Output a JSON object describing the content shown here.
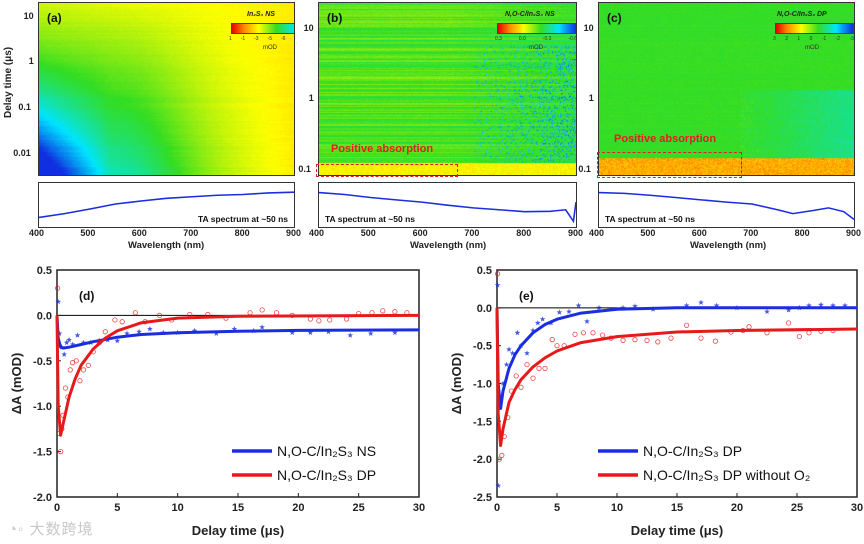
{
  "heatmaps": [
    {
      "id": "a",
      "panel_label": "(a)",
      "title": "In₂S₃ NS",
      "colorbar_ticks": [
        "1",
        "-1",
        "-3",
        "-5",
        "-6",
        "-8",
        "-10"
      ],
      "colorbar_unit": "mOD",
      "y_ticks": [
        "10",
        "1",
        "0.1",
        "0.01"
      ],
      "y_tick_values": [
        10,
        1,
        0.1,
        0.01
      ],
      "ylim": [
        0.0033,
        21
      ],
      "x_ticks": [
        "400",
        "500",
        "600",
        "700",
        "800",
        "900"
      ],
      "xlim": [
        400,
        900
      ],
      "xlabel": "Wavelength (nm)",
      "ylabel": "Delay time (μs)",
      "spectrum_caption": "TA spectrum at ~50 ns",
      "spectrum": {
        "x": [
          400,
          450,
          500,
          550,
          600,
          650,
          700,
          750,
          800,
          850,
          900
        ],
        "y": [
          0.2,
          0.3,
          0.42,
          0.55,
          0.63,
          0.7,
          0.74,
          0.78,
          0.8,
          0.84,
          0.86
        ]
      }
    },
    {
      "id": "b",
      "panel_label": "(b)",
      "title": "N,O-C/In₂S₃ NS",
      "colorbar_ticks": [
        "0.3",
        "0.0",
        "-0.3",
        "-0.6"
      ],
      "colorbar_unit": "mOD",
      "y_ticks": [
        "10",
        "1",
        "0.1"
      ],
      "y_tick_values": [
        10,
        1,
        0.1
      ],
      "ylim": [
        0.082,
        24
      ],
      "x_ticks": [
        "400",
        "500",
        "600",
        "700",
        "800",
        "900"
      ],
      "xlim": [
        400,
        900
      ],
      "xlabel": "Wavelength (nm)",
      "spectrum_caption": "TA spectrum at ~50 ns",
      "annotation": "Positive absorption",
      "spectrum": {
        "x": [
          400,
          450,
          500,
          550,
          600,
          650,
          700,
          750,
          800,
          850,
          880,
          895,
          900
        ],
        "y": [
          0.85,
          0.8,
          0.72,
          0.66,
          0.6,
          0.52,
          0.45,
          0.4,
          0.35,
          0.36,
          0.4,
          0.1,
          0.6
        ]
      }
    },
    {
      "id": "c",
      "panel_label": "(c)",
      "title": "N,O-C/In₂S₃ DP",
      "colorbar_ticks": [
        "3",
        "2",
        "1",
        "0",
        "-1",
        "-2",
        "-3"
      ],
      "colorbar_unit": "mOD",
      "y_ticks": [
        "10",
        "1",
        "0.1"
      ],
      "y_tick_values": [
        10,
        1,
        0.1
      ],
      "ylim": [
        0.082,
        24
      ],
      "x_ticks": [
        "400",
        "500",
        "600",
        "700",
        "800",
        "900"
      ],
      "xlim": [
        400,
        900
      ],
      "xlabel": "Wavelength (nm)",
      "spectrum_caption": "TA spectrum at ~50 ns",
      "annotation": "Positive absorption",
      "spectrum": {
        "x": [
          400,
          450,
          500,
          550,
          600,
          650,
          700,
          750,
          780,
          820,
          850,
          880,
          900
        ],
        "y": [
          0.85,
          0.83,
          0.78,
          0.72,
          0.66,
          0.6,
          0.55,
          0.4,
          0.3,
          0.38,
          0.45,
          0.35,
          0.15
        ]
      }
    }
  ],
  "chart_data": [
    {
      "type": "scatter",
      "panel_label": "(d)",
      "xlabel": "Delay time (μs)",
      "ylabel": "ΔA (mOD)",
      "xlim": [
        0,
        30
      ],
      "ylim": [
        -2.0,
        0.5
      ],
      "x_ticks": [
        "0",
        "5",
        "10",
        "15",
        "20",
        "25",
        "30"
      ],
      "x_tick_values": [
        0,
        5,
        10,
        15,
        20,
        25,
        30
      ],
      "y_ticks": [
        "0.5",
        "0.0",
        "-0.5",
        "-1.0",
        "-1.5",
        "-2.0"
      ],
      "y_tick_values": [
        0.5,
        0,
        -0.5,
        -1.0,
        -1.5,
        -2.0
      ],
      "legend_position": "bottom-right",
      "series": [
        {
          "name": "N,O-C/In₂S₃ NS",
          "color": "#1a2ee0",
          "marker": "star",
          "fit": {
            "x": [
              0,
              0.1,
              0.3,
              0.5,
              1,
              2,
              3,
              5,
              7,
              10,
              15,
              20,
              30
            ],
            "y": [
              0,
              -0.25,
              -0.35,
              -0.36,
              -0.35,
              -0.32,
              -0.29,
              -0.24,
              -0.21,
              -0.19,
              -0.175,
              -0.165,
              -0.16
            ]
          },
          "points": {
            "x": [
              0.1,
              0.2,
              0.4,
              0.6,
              0.8,
              1.0,
              1.3,
              1.7,
              2.2,
              2.8,
              3.5,
              4.2,
              5.0,
              5.8,
              6.8,
              7.7,
              8.8,
              10.0,
              11.4,
              13.2,
              14.7,
              16.3,
              17.0,
              19.5,
              21.0,
              22.5,
              24.3,
              26.0,
              28.0
            ],
            "y": [
              0.15,
              -0.2,
              -0.35,
              -0.43,
              -0.3,
              -0.27,
              -0.32,
              -0.22,
              -0.3,
              -0.3,
              -0.28,
              -0.27,
              -0.28,
              -0.2,
              -0.18,
              -0.15,
              -0.19,
              -0.19,
              -0.17,
              -0.2,
              -0.15,
              -0.17,
              -0.13,
              -0.19,
              -0.19,
              -0.18,
              -0.22,
              -0.2,
              -0.19
            ]
          }
        },
        {
          "name": "N,O-C/In₂S₃ DP",
          "color": "#e61a1a",
          "marker": "circle",
          "fit": {
            "x": [
              0,
              0.1,
              0.3,
              0.5,
              1,
              1.5,
              2,
              3,
              4,
              5,
              7,
              10,
              15,
              30
            ],
            "y": [
              0,
              -1.0,
              -1.32,
              -1.2,
              -0.9,
              -0.7,
              -0.55,
              -0.37,
              -0.25,
              -0.17,
              -0.08,
              -0.03,
              -0.01,
              0
            ]
          },
          "points": {
            "x": [
              0.05,
              0.2,
              0.3,
              0.4,
              0.5,
              0.7,
              0.9,
              1.1,
              1.3,
              1.6,
              1.9,
              2.2,
              2.6,
              3.0,
              3.5,
              4.0,
              4.8,
              5.4,
              6.5,
              7.3,
              8.5,
              9.5,
              11.0,
              12.5,
              14.0,
              16.0,
              17.0,
              18.2,
              19.5,
              21.0,
              21.7,
              22.6,
              24.0,
              25.0,
              26.1,
              27.0,
              28.0,
              29.0
            ],
            "y": [
              0.3,
              -1.3,
              -1.5,
              -1.25,
              -1.1,
              -0.8,
              -0.9,
              -0.6,
              -0.52,
              -0.5,
              -0.72,
              -0.6,
              -0.55,
              -0.4,
              -0.3,
              -0.18,
              -0.05,
              -0.07,
              0.03,
              -0.07,
              0,
              -0.05,
              0.01,
              0.01,
              -0.03,
              0.03,
              0.06,
              0.03,
              0,
              -0.04,
              -0.06,
              -0.05,
              -0.04,
              0.02,
              0.03,
              0.05,
              0.04,
              0.03
            ]
          }
        }
      ]
    },
    {
      "type": "scatter",
      "panel_label": "(e)",
      "xlabel": "Delay time (μs)",
      "ylabel": "ΔA (mOD)",
      "xlim": [
        0,
        30
      ],
      "ylim": [
        -2.5,
        0.5
      ],
      "x_ticks": [
        "0",
        "5",
        "10",
        "15",
        "20",
        "25",
        "30"
      ],
      "x_tick_values": [
        0,
        5,
        10,
        15,
        20,
        25,
        30
      ],
      "y_ticks": [
        "0.5",
        "0.0",
        "-0.5",
        "-1.0",
        "-1.5",
        "-2.0",
        "-2.5"
      ],
      "y_tick_values": [
        0.5,
        0,
        -0.5,
        -1.0,
        -1.5,
        -2.0,
        -2.5
      ],
      "legend_position": "bottom-right",
      "series": [
        {
          "name": "N,O-C/In₂S₃ DP",
          "color": "#1a2ee0",
          "marker": "star",
          "fit": {
            "x": [
              0,
              0.1,
              0.3,
              0.5,
              1,
              1.5,
              2,
              3,
              4,
              5,
              7,
              10,
              15,
              30
            ],
            "y": [
              0,
              -1.0,
              -1.33,
              -1.1,
              -0.8,
              -0.62,
              -0.5,
              -0.33,
              -0.22,
              -0.15,
              -0.07,
              -0.02,
              0,
              0
            ]
          },
          "points": {
            "x": [
              0.05,
              0.1,
              0.3,
              0.5,
              0.8,
              1.0,
              1.3,
              1.7,
              2.0,
              2.5,
              3.0,
              3.4,
              3.8,
              4.5,
              5.2,
              6.0,
              6.8,
              7.5,
              8.5,
              10.5,
              11.5,
              13.0,
              15.8,
              17.0,
              18.3,
              20.0,
              22.5,
              24.3,
              25.2,
              26.0,
              27.0,
              28.0,
              29.0
            ],
            "y": [
              0.3,
              -2.35,
              -1.2,
              -1.0,
              -0.75,
              -0.55,
              -0.6,
              -0.33,
              -0.5,
              -0.6,
              -0.3,
              -0.2,
              -0.15,
              -0.2,
              -0.06,
              -0.05,
              0.03,
              -0.18,
              0,
              0,
              0.02,
              -0.02,
              0.03,
              0.07,
              0.03,
              0,
              -0.05,
              -0.03,
              0,
              0.03,
              0.04,
              0.03,
              0.03
            ]
          }
        },
        {
          "name": "N,O-C/In₂S₃ DP without O₂",
          "color": "#e61a1a",
          "marker": "circle",
          "fit": {
            "x": [
              0,
              0.1,
              0.3,
              0.5,
              1,
              1.5,
              2,
              3,
              4,
              5,
              7,
              10,
              15,
              20,
              30
            ],
            "y": [
              0,
              -1.4,
              -1.82,
              -1.6,
              -1.25,
              -1.08,
              -0.95,
              -0.78,
              -0.66,
              -0.57,
              -0.46,
              -0.38,
              -0.32,
              -0.3,
              -0.28
            ]
          },
          "points": {
            "x": [
              0.05,
              0.2,
              0.4,
              0.6,
              0.9,
              1.2,
              1.6,
              2.0,
              2.5,
              3.0,
              3.5,
              4.0,
              4.6,
              5.0,
              5.6,
              6.5,
              7.2,
              8.0,
              8.8,
              9.5,
              10.5,
              11.5,
              12.5,
              13.4,
              14.5,
              15.8,
              17.0,
              18.2,
              19.5,
              20.5,
              21.0,
              22.5,
              24.3,
              25.2,
              26.0,
              27.0,
              28.0
            ],
            "y": [
              0.45,
              -2.0,
              -1.95,
              -1.7,
              -1.45,
              -1.1,
              -0.9,
              -1.05,
              -0.75,
              -0.93,
              -0.8,
              -0.8,
              -0.42,
              -0.5,
              -0.5,
              -0.35,
              -0.33,
              -0.33,
              -0.36,
              -0.4,
              -0.43,
              -0.42,
              -0.43,
              -0.45,
              -0.4,
              -0.23,
              -0.4,
              -0.44,
              -0.32,
              -0.3,
              -0.25,
              -0.33,
              -0.2,
              -0.38,
              -0.33,
              -0.31,
              -0.3
            ]
          }
        }
      ]
    }
  ],
  "watermark": "大数跨境"
}
